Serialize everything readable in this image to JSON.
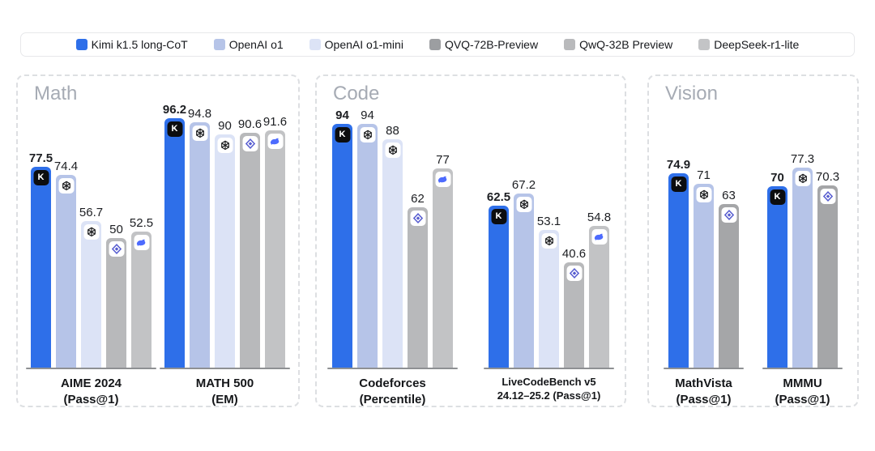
{
  "legend": {
    "items": [
      {
        "id": "kimi",
        "label": "Kimi k1.5 long-CoT",
        "color": "#2e6fe9"
      },
      {
        "id": "openai_o1",
        "label": "OpenAI o1",
        "color": "#b6c4e8"
      },
      {
        "id": "openai_o1_mini",
        "label": "OpenAI o1-mini",
        "color": "#dce3f6"
      },
      {
        "id": "qvq_72b",
        "label": "QVQ-72B-Preview",
        "color": "#9c9ea1"
      },
      {
        "id": "qwq_32b",
        "label": "QwQ-32B Preview",
        "color": "#b9babc"
      },
      {
        "id": "deepseek_r1_lite",
        "label": "DeepSeek-r1-lite",
        "color": "#c3c4c6"
      }
    ]
  },
  "models": {
    "kimi": {
      "name": "Kimi k1.5 long-CoT",
      "color": "#2e6fe9",
      "icon": "kimi-icon"
    },
    "openai_o1": {
      "name": "OpenAI o1",
      "color": "#b6c4e8",
      "icon": "openai-icon"
    },
    "openai_o1_mini": {
      "name": "OpenAI o1-mini",
      "color": "#dce3f6",
      "icon": "openai-icon"
    },
    "qvq_72b": {
      "name": "QVQ-72B-Preview",
      "color": "#a5a6a8",
      "icon": "qwen-icon"
    },
    "qwq_32b": {
      "name": "QwQ-32B Preview",
      "color": "#b8b9bb",
      "icon": "qwen-icon"
    },
    "deepseek_r1_lite": {
      "name": "DeepSeek-r1-lite",
      "color": "#c2c3c5",
      "icon": "deepseek-whale-icon"
    }
  },
  "chart_data": [
    {
      "type": "bar",
      "panel": "Math",
      "ylim": [
        0,
        100
      ],
      "grid": false,
      "legend_position": "top",
      "groups": [
        {
          "title_lines": [
            "AIME 2024",
            "(Pass@1)"
          ],
          "compact": false,
          "bars": [
            {
              "model": "kimi",
              "value": 77.5
            },
            {
              "model": "openai_o1",
              "value": 74.4
            },
            {
              "model": "openai_o1_mini",
              "value": 56.7
            },
            {
              "model": "qwq_32b",
              "value": 50
            },
            {
              "model": "deepseek_r1_lite",
              "value": 52.5
            }
          ]
        },
        {
          "title_lines": [
            "MATH 500",
            "(EM)"
          ],
          "compact": false,
          "bars": [
            {
              "model": "kimi",
              "value": 96.2
            },
            {
              "model": "openai_o1",
              "value": 94.8
            },
            {
              "model": "openai_o1_mini",
              "value": 90
            },
            {
              "model": "qwq_32b",
              "value": 90.6
            },
            {
              "model": "deepseek_r1_lite",
              "value": 91.6
            }
          ]
        }
      ]
    },
    {
      "type": "bar",
      "panel": "Code",
      "ylim": [
        0,
        100
      ],
      "grid": false,
      "legend_position": "top",
      "groups": [
        {
          "title_lines": [
            "Codeforces",
            "(Percentile)"
          ],
          "compact": false,
          "bars": [
            {
              "model": "kimi",
              "value": 94
            },
            {
              "model": "openai_o1",
              "value": 94
            },
            {
              "model": "openai_o1_mini",
              "value": 88
            },
            {
              "model": "qwq_32b",
              "value": 62
            },
            {
              "model": "deepseek_r1_lite",
              "value": 77
            }
          ]
        },
        {
          "title_lines": [
            "LiveCodeBench v5",
            "24.12–25.2 (Pass@1)"
          ],
          "compact": true,
          "bars": [
            {
              "model": "kimi",
              "value": 62.5
            },
            {
              "model": "openai_o1",
              "value": 67.2
            },
            {
              "model": "openai_o1_mini",
              "value": 53.1
            },
            {
              "model": "qwq_32b",
              "value": 40.6
            },
            {
              "model": "deepseek_r1_lite",
              "value": 54.8
            }
          ]
        }
      ]
    },
    {
      "type": "bar",
      "panel": "Vision",
      "ylim": [
        0,
        100
      ],
      "grid": false,
      "legend_position": "top",
      "groups": [
        {
          "title_lines": [
            "MathVista",
            "(Pass@1)"
          ],
          "compact": false,
          "bars": [
            {
              "model": "kimi",
              "value": 74.9
            },
            {
              "model": "openai_o1",
              "value": 71
            },
            {
              "model": "qvq_72b",
              "value": 63
            }
          ]
        },
        {
          "title_lines": [
            "MMMU",
            "(Pass@1)"
          ],
          "compact": false,
          "bars": [
            {
              "model": "kimi",
              "value": 70
            },
            {
              "model": "openai_o1",
              "value": 77.3
            },
            {
              "model": "qvq_72b",
              "value": 70.3
            }
          ]
        }
      ]
    }
  ]
}
